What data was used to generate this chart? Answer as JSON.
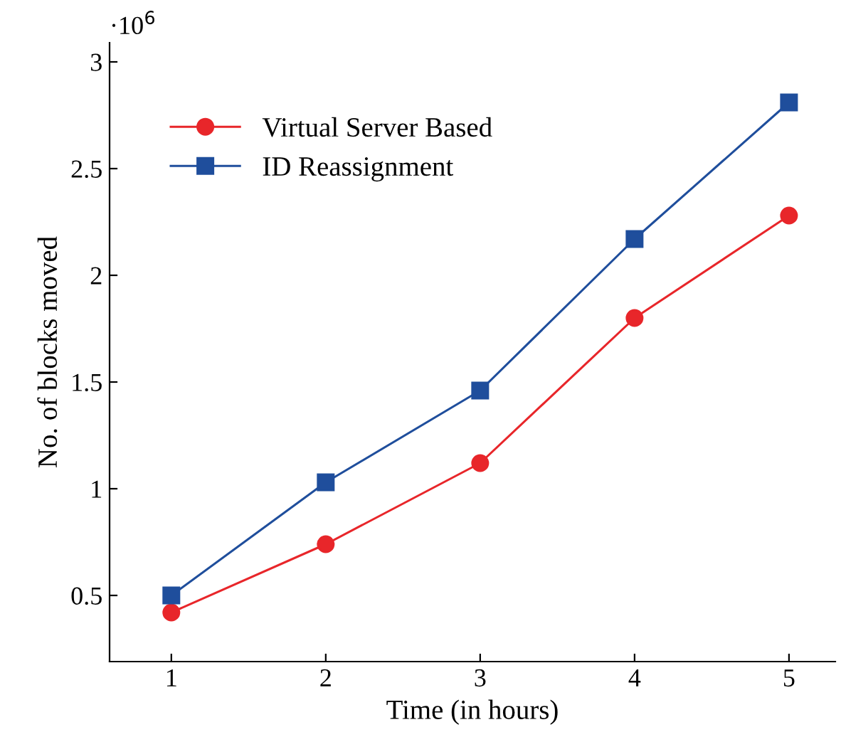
{
  "chart_data": {
    "type": "line",
    "xlabel": "Time (in hours)",
    "ylabel": "No. of blocks moved",
    "annotations": [
      "·10$^{6}$"
    ],
    "x": [
      1,
      2,
      3,
      4,
      5
    ],
    "series": [
      {
        "name": "Virtual Server Based",
        "color": "#e8262a",
        "marker": "circle",
        "values": [
          0.42,
          0.74,
          1.12,
          1.8,
          2.28
        ]
      },
      {
        "name": "ID Reassignment",
        "color": "#1f4e9c",
        "marker": "square",
        "values": [
          0.5,
          1.03,
          1.46,
          2.17,
          2.81
        ]
      }
    ],
    "xlim": [
      0.6,
      5.3
    ],
    "ylim": [
      0.19,
      3.09
    ],
    "xticks": [
      1,
      2,
      3,
      4,
      5
    ],
    "yticks": [
      0.5,
      1,
      1.5,
      2,
      2.5,
      3
    ],
    "legend": "top left",
    "grid": false
  }
}
